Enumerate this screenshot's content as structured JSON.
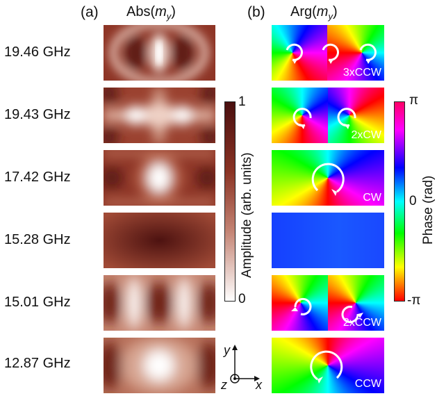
{
  "panel_labels": {
    "a": "(a)",
    "b": "(b)"
  },
  "column_titles": {
    "abs": {
      "prefix": "Abs(",
      "var": "m",
      "sub": "y",
      "suffix": ")"
    },
    "arg": {
      "prefix": "Arg(",
      "var": "m",
      "sub": "y",
      "suffix": ")"
    }
  },
  "rows": [
    {
      "frequency": "19.46 GHz",
      "mode_label": "3xCCW"
    },
    {
      "frequency": "19.43 GHz",
      "mode_label": "2xCW"
    },
    {
      "frequency": "17.42 GHz",
      "mode_label": "CW"
    },
    {
      "frequency": "15.28 GHz",
      "mode_label": ""
    },
    {
      "frequency": "15.01 GHz",
      "mode_label": "2xCCW"
    },
    {
      "frequency": "12.87 GHz",
      "mode_label": "CCW"
    }
  ],
  "amplitude_colorbar": {
    "max_label": "1",
    "min_label": "0",
    "title": "Amplitude (arb. units)",
    "color_low": "#ffffff",
    "color_high": "#4a0f0f"
  },
  "phase_colorbar": {
    "max_label": "π",
    "zero_label": "0",
    "min_label": "-π",
    "title": "Phase (rad)"
  },
  "axes": {
    "y": "y",
    "z": "z",
    "x": "x"
  },
  "colors": {
    "amp_dark": "#5a1a1a",
    "amp_mid": "#a8523a",
    "amp_light": "#f2e6e0"
  }
}
